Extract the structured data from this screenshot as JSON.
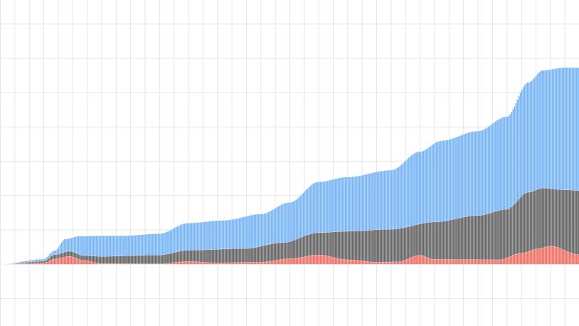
{
  "chart_data": {
    "type": "bar",
    "stacked": true,
    "title": "",
    "xlabel": "",
    "ylabel": "",
    "grid": true,
    "legend": "none",
    "bar_count": 400,
    "ylim": [
      -18,
      77
    ],
    "x_domain": [
      0,
      400
    ],
    "colors": {
      "red": "#f07268",
      "dark": "#666666",
      "blue": "#7ab6f6",
      "bar_border": "#ffffff",
      "grid": "#e6e6e6"
    },
    "series_keypoints": {
      "red_top": [
        [
          0,
          0
        ],
        [
          30,
          0.4
        ],
        [
          38,
          1.5
        ],
        [
          48,
          2.3
        ],
        [
          58,
          1.1
        ],
        [
          70,
          0.2
        ],
        [
          110,
          0.1
        ],
        [
          130,
          0.8
        ],
        [
          150,
          0.4
        ],
        [
          180,
          0.6
        ],
        [
          200,
          1.6
        ],
        [
          220,
          2.7
        ],
        [
          240,
          1.3
        ],
        [
          260,
          0.6
        ],
        [
          275,
          0.7
        ],
        [
          290,
          2.6
        ],
        [
          300,
          1.4
        ],
        [
          345,
          1.3
        ],
        [
          360,
          3.2
        ],
        [
          372,
          4.5
        ],
        [
          380,
          5.3
        ],
        [
          400,
          2.8
        ]
      ],
      "dark_top": [
        [
          0,
          0
        ],
        [
          30,
          0.9
        ],
        [
          38,
          2.8
        ],
        [
          48,
          3.8
        ],
        [
          58,
          2.5
        ],
        [
          70,
          2.3
        ],
        [
          110,
          2.7
        ],
        [
          130,
          4.1
        ],
        [
          170,
          4.6
        ],
        [
          195,
          6.3
        ],
        [
          220,
          9.2
        ],
        [
          240,
          9.6
        ],
        [
          270,
          10.2
        ],
        [
          300,
          12.3
        ],
        [
          330,
          14.2
        ],
        [
          350,
          16.0
        ],
        [
          365,
          21.0
        ],
        [
          375,
          22.2
        ],
        [
          390,
          21.7
        ],
        [
          400,
          21.5
        ]
      ],
      "blue_top": [
        [
          0,
          0
        ],
        [
          30,
          1.5
        ],
        [
          38,
          4.0
        ],
        [
          45,
          7.3
        ],
        [
          55,
          8.2
        ],
        [
          70,
          8.3
        ],
        [
          85,
          8.3
        ],
        [
          110,
          8.9
        ],
        [
          130,
          12.0
        ],
        [
          155,
          12.8
        ],
        [
          180,
          14.6
        ],
        [
          200,
          18.0
        ],
        [
          220,
          24.0
        ],
        [
          240,
          25.4
        ],
        [
          270,
          27.4
        ],
        [
          290,
          32.8
        ],
        [
          305,
          36.0
        ],
        [
          330,
          38.8
        ],
        [
          350,
          43.0
        ],
        [
          365,
          53.0
        ],
        [
          375,
          56.5
        ],
        [
          390,
          57.3
        ],
        [
          400,
          57.3
        ]
      ]
    }
  }
}
